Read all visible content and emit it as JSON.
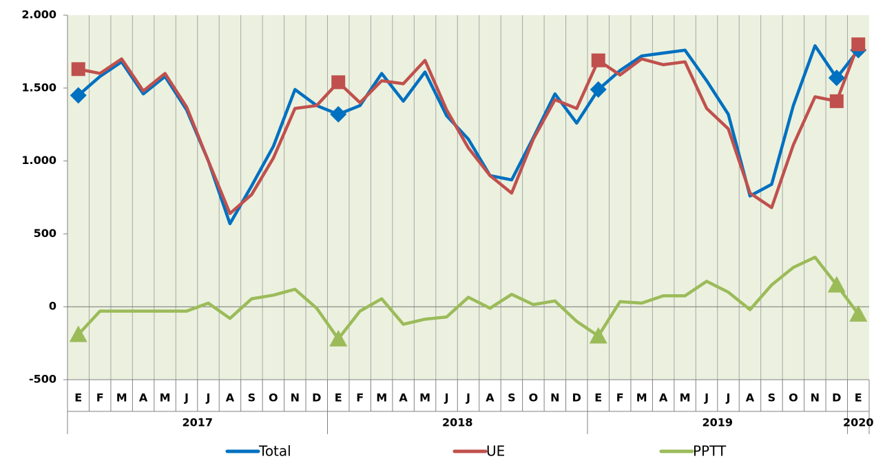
{
  "chart_data": {
    "type": "line",
    "categories": [
      "E",
      "F",
      "M",
      "A",
      "M",
      "J",
      "J",
      "A",
      "S",
      "O",
      "N",
      "D",
      "E",
      "F",
      "M",
      "A",
      "M",
      "J",
      "J",
      "A",
      "S",
      "O",
      "N",
      "D",
      "E",
      "F",
      "M",
      "A",
      "M",
      "J",
      "J",
      "A",
      "S",
      "O",
      "N",
      "D",
      "E"
    ],
    "x_groups": [
      {
        "label": "2017",
        "count": 12
      },
      {
        "label": "2018",
        "count": 12
      },
      {
        "label": "2019",
        "count": 12
      },
      {
        "label": "2020",
        "count": 1
      }
    ],
    "series": [
      {
        "name": "Total",
        "color": "#0070c0",
        "marker": "diamond",
        "marker_at": [
          0,
          12,
          24,
          35,
          36
        ],
        "values": [
          1450,
          1580,
          1680,
          1460,
          1580,
          1350,
          1000,
          570,
          830,
          1100,
          1490,
          1380,
          1320,
          1380,
          1600,
          1410,
          1610,
          1310,
          1150,
          900,
          870,
          1160,
          1460,
          1260,
          1490,
          1620,
          1720,
          1740,
          1760,
          1550,
          1320,
          760,
          840,
          1380,
          1790,
          1570,
          1760
        ]
      },
      {
        "name": "UE",
        "color": "#c0504d",
        "marker": "square",
        "marker_at": [
          0,
          12,
          24,
          35,
          36
        ],
        "values": [
          1630,
          1600,
          1700,
          1480,
          1600,
          1370,
          1000,
          640,
          770,
          1020,
          1360,
          1380,
          1540,
          1400,
          1550,
          1530,
          1690,
          1350,
          1090,
          900,
          780,
          1150,
          1420,
          1360,
          1690,
          1590,
          1700,
          1660,
          1680,
          1360,
          1220,
          780,
          680,
          1110,
          1440,
          1410,
          1800
        ]
      },
      {
        "name": "PPTT",
        "color": "#9bbb59",
        "marker": "triangle",
        "marker_at": [
          0,
          12,
          24,
          35,
          36
        ],
        "values": [
          -190,
          -30,
          -30,
          -30,
          -30,
          -30,
          25,
          -80,
          55,
          80,
          120,
          -10,
          -220,
          -30,
          55,
          -120,
          -85,
          -70,
          65,
          -10,
          85,
          15,
          40,
          -100,
          -200,
          35,
          25,
          75,
          75,
          175,
          100,
          -20,
          150,
          270,
          340,
          150,
          -50
        ]
      }
    ],
    "ylim": [
      -500,
      2000
    ],
    "yticks": [
      {
        "value": 2000,
        "label": "2.000"
      },
      {
        "value": 1500,
        "label": "1.500"
      },
      {
        "value": 1000,
        "label": "1.000"
      },
      500,
      0,
      -500
    ],
    "background": "#ebf1de"
  }
}
